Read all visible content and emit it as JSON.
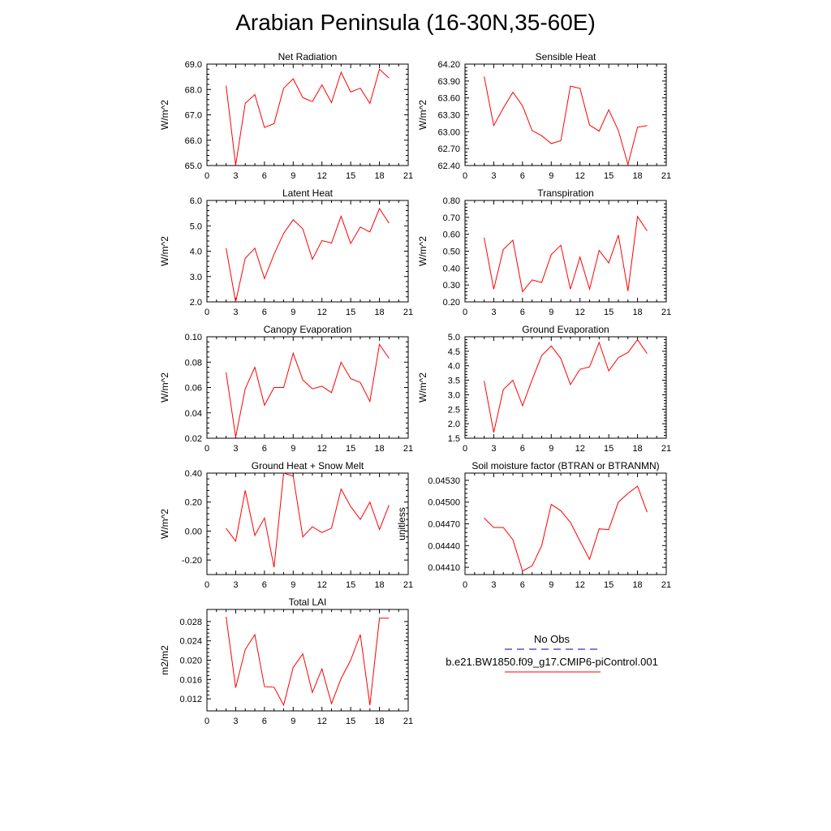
{
  "page_title": "Arabian Peninsula (16-30N,35-60E)",
  "legend": {
    "obs_label": "No Obs",
    "obs_color": "#3a2fc2",
    "model_label": "b.e21.BW1850.f09_g17.CMIP6-piControl.001",
    "model_color": "#ff0000"
  },
  "chart_data": [
    {
      "type": "line",
      "title": "Net Radiation",
      "ylabel": "W/m^2",
      "xlim": [
        0,
        21
      ],
      "ylim": [
        65.0,
        69.0
      ],
      "xticks": [
        "0",
        "3",
        "6",
        "9",
        "12",
        "15",
        "18",
        "21"
      ],
      "yticks": [
        "65.0",
        "66.0",
        "67.0",
        "68.0",
        "69.0"
      ],
      "series": [
        {
          "x": [
            2,
            3,
            4,
            5,
            6,
            7,
            8,
            9,
            10,
            11,
            12,
            13,
            14,
            15,
            16,
            17,
            18,
            19
          ],
          "values": [
            68.15,
            65.02,
            67.45,
            67.8,
            66.5,
            66.65,
            68.05,
            68.42,
            67.68,
            67.52,
            68.18,
            67.48,
            68.68,
            67.9,
            68.05,
            67.45,
            68.8,
            68.45
          ]
        }
      ]
    },
    {
      "type": "line",
      "title": "Sensible Heat",
      "ylabel": "W/m^2",
      "xlim": [
        0,
        21
      ],
      "ylim": [
        62.4,
        64.2
      ],
      "xticks": [
        "0",
        "3",
        "6",
        "9",
        "12",
        "15",
        "18",
        "21"
      ],
      "yticks": [
        "62.40",
        "62.70",
        "63.00",
        "63.30",
        "63.60",
        "63.90",
        "64.20"
      ],
      "series": [
        {
          "x": [
            2,
            3,
            4,
            5,
            6,
            7,
            8,
            9,
            10,
            11,
            12,
            13,
            14,
            15,
            16,
            17,
            18,
            19
          ],
          "values": [
            63.98,
            63.11,
            63.42,
            63.7,
            63.46,
            63.02,
            62.93,
            62.79,
            62.84,
            63.81,
            63.77,
            63.12,
            63.01,
            63.39,
            63.02,
            62.42,
            63.08,
            63.11
          ]
        }
      ]
    },
    {
      "type": "line",
      "title": "Latent Heat",
      "ylabel": "W/m^2",
      "xlim": [
        0,
        21
      ],
      "ylim": [
        2.0,
        6.0
      ],
      "xticks": [
        "0",
        "3",
        "6",
        "9",
        "12",
        "15",
        "18",
        "21"
      ],
      "yticks": [
        "2.0",
        "3.0",
        "4.0",
        "5.0",
        "6.0"
      ],
      "series": [
        {
          "x": [
            2,
            3,
            4,
            5,
            6,
            7,
            8,
            9,
            10,
            11,
            12,
            13,
            14,
            15,
            16,
            17,
            18,
            19
          ],
          "values": [
            4.12,
            2.0,
            3.72,
            4.12,
            2.92,
            3.88,
            4.7,
            5.24,
            4.88,
            3.68,
            4.42,
            4.32,
            5.38,
            4.3,
            4.95,
            4.76,
            5.68,
            5.1
          ]
        }
      ]
    },
    {
      "type": "line",
      "title": "Transpiration",
      "ylabel": "W/m^2",
      "xlim": [
        0,
        21
      ],
      "ylim": [
        0.2,
        0.8
      ],
      "xticks": [
        "0",
        "3",
        "6",
        "9",
        "12",
        "15",
        "18",
        "21"
      ],
      "yticks": [
        "0.20",
        "0.30",
        "0.40",
        "0.50",
        "0.60",
        "0.70",
        "0.80"
      ],
      "series": [
        {
          "x": [
            2,
            3,
            4,
            5,
            6,
            7,
            8,
            9,
            10,
            11,
            12,
            13,
            14,
            15,
            16,
            17,
            18,
            19
          ],
          "values": [
            0.58,
            0.275,
            0.51,
            0.565,
            0.26,
            0.33,
            0.315,
            0.48,
            0.535,
            0.275,
            0.465,
            0.275,
            0.505,
            0.43,
            0.595,
            0.265,
            0.705,
            0.62
          ]
        }
      ]
    },
    {
      "type": "line",
      "title": "Canopy Evaporation",
      "ylabel": "W/m^2",
      "xlim": [
        0,
        21
      ],
      "ylim": [
        0.02,
        0.1
      ],
      "xticks": [
        "0",
        "3",
        "6",
        "9",
        "12",
        "15",
        "18",
        "21"
      ],
      "yticks": [
        "0.02",
        "0.04",
        "0.06",
        "0.08",
        "0.10"
      ],
      "series": [
        {
          "x": [
            2,
            3,
            4,
            5,
            6,
            7,
            8,
            9,
            10,
            11,
            12,
            13,
            14,
            15,
            16,
            17,
            18,
            19
          ],
          "values": [
            0.072,
            0.021,
            0.059,
            0.076,
            0.046,
            0.06,
            0.06,
            0.087,
            0.066,
            0.059,
            0.061,
            0.056,
            0.08,
            0.067,
            0.064,
            0.049,
            0.094,
            0.083
          ]
        }
      ]
    },
    {
      "type": "line",
      "title": "Ground Evaporation",
      "ylabel": "W/m^2",
      "xlim": [
        0,
        21
      ],
      "ylim": [
        1.5,
        5.0
      ],
      "xticks": [
        "0",
        "3",
        "6",
        "9",
        "12",
        "15",
        "18",
        "21"
      ],
      "yticks": [
        "1.5",
        "2.0",
        "2.5",
        "3.0",
        "3.5",
        "4.0",
        "4.5",
        "5.0"
      ],
      "series": [
        {
          "x": [
            2,
            3,
            4,
            5,
            6,
            7,
            8,
            9,
            10,
            11,
            12,
            13,
            14,
            15,
            16,
            17,
            18,
            19
          ],
          "values": [
            3.48,
            1.7,
            3.18,
            3.5,
            2.62,
            3.52,
            4.35,
            4.68,
            4.25,
            3.35,
            3.88,
            3.96,
            4.8,
            3.82,
            4.28,
            4.46,
            4.9,
            4.42
          ]
        }
      ]
    },
    {
      "type": "line",
      "title": "Ground Heat + Snow Melt",
      "ylabel": "W/m^2",
      "xlim": [
        0,
        21
      ],
      "ylim": [
        -0.3,
        0.4
      ],
      "xticks": [
        "0",
        "3",
        "6",
        "9",
        "12",
        "15",
        "18",
        "21"
      ],
      "yticks": [
        "-0.20",
        "0.00",
        "0.20",
        "0.40"
      ],
      "series": [
        {
          "x": [
            2,
            3,
            4,
            5,
            6,
            7,
            8,
            9,
            10,
            11,
            12,
            13,
            14,
            15,
            16,
            17,
            18,
            19
          ],
          "values": [
            0.02,
            -0.07,
            0.28,
            -0.03,
            0.09,
            -0.25,
            0.4,
            0.38,
            -0.04,
            0.03,
            -0.01,
            0.02,
            0.29,
            0.17,
            0.08,
            0.2,
            0.01,
            0.18
          ]
        }
      ]
    },
    {
      "type": "line",
      "title": "Soil moisture factor (BTRAN or BTRANMN)",
      "ylabel": "unitless",
      "xlim": [
        0,
        21
      ],
      "ylim": [
        0.044,
        0.0454
      ],
      "xticks": [
        "0",
        "3",
        "6",
        "9",
        "12",
        "15",
        "18",
        "21"
      ],
      "yticks": [
        "0.04410",
        "0.04440",
        "0.04470",
        "0.04500",
        "0.04530"
      ],
      "series": [
        {
          "x": [
            2,
            3,
            4,
            5,
            6,
            7,
            8,
            9,
            10,
            11,
            12,
            13,
            14,
            15,
            16,
            17,
            18,
            19
          ],
          "values": [
            0.04478,
            0.04465,
            0.04465,
            0.04448,
            0.04405,
            0.04412,
            0.0444,
            0.04497,
            0.04488,
            0.04472,
            0.04446,
            0.04421,
            0.04463,
            0.04462,
            0.045,
            0.04512,
            0.04522,
            0.04486
          ]
        }
      ]
    },
    {
      "type": "line",
      "title": "Total LAI",
      "ylabel": "m2/m2",
      "xlim": [
        0,
        21
      ],
      "ylim": [
        0.0095,
        0.0305
      ],
      "xticks": [
        "0",
        "3",
        "6",
        "9",
        "12",
        "15",
        "18",
        "21"
      ],
      "yticks": [
        "0.012",
        "0.016",
        "0.020",
        "0.024",
        "0.028"
      ],
      "series": [
        {
          "x": [
            2,
            3,
            4,
            5,
            6,
            7,
            8,
            9,
            10,
            11,
            12,
            13,
            14,
            15,
            16,
            17,
            18,
            19
          ],
          "values": [
            0.029,
            0.0143,
            0.0222,
            0.0253,
            0.0145,
            0.0144,
            0.0107,
            0.0185,
            0.0213,
            0.0133,
            0.0182,
            0.011,
            0.0162,
            0.02,
            0.0253,
            0.0107,
            0.0287,
            0.0287
          ]
        }
      ]
    }
  ]
}
